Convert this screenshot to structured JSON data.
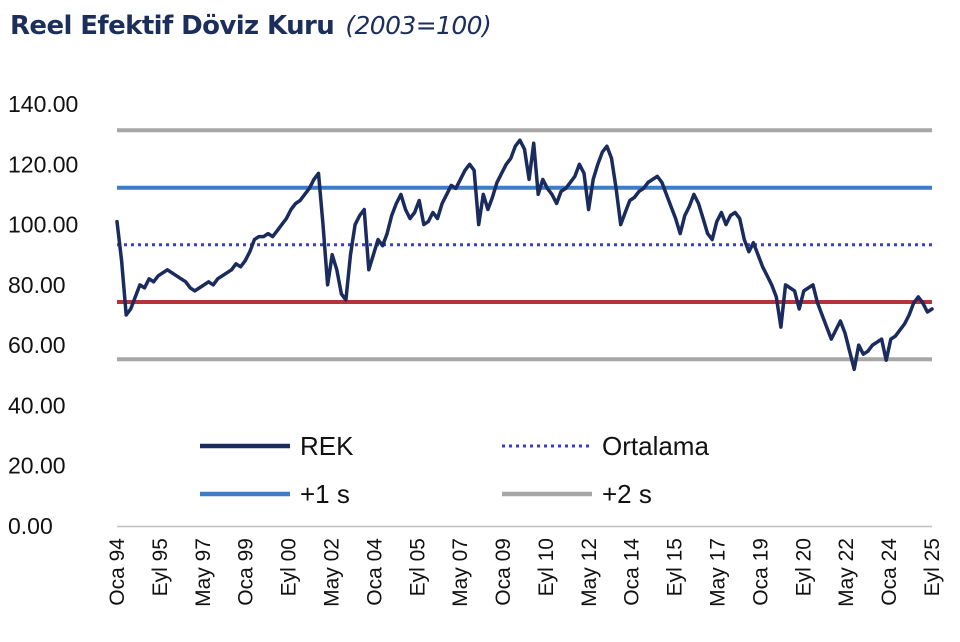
{
  "title": "Reel Efektif Döviz Kuru",
  "subtitle": "(2003=100)",
  "colors": {
    "rek": "#1a2b5e",
    "mean": "#3a3ccf",
    "sd1": "#3d7cc9",
    "sd2": "#a6a6a6",
    "lower1": "#b53339",
    "text": "#111111"
  },
  "chart_data": {
    "type": "line",
    "title": "Reel Efektif Döviz Kuru (2003=100)",
    "ylim": [
      0,
      140
    ],
    "yticks": [
      "0.00",
      "20.00",
      "40.00",
      "60.00",
      "80.00",
      "100.00",
      "120.00",
      "140.00"
    ],
    "xticks": [
      "Oca 94",
      "Eyl 95",
      "May 97",
      "Oca 99",
      "Eyl 00",
      "May 02",
      "Oca 04",
      "Eyl 05",
      "May 07",
      "Oca 09",
      "Eyl 10",
      "May 12",
      "Oca 14",
      "Eyl 15",
      "May 17",
      "Oca 19",
      "Eyl 20",
      "May 22",
      "Oca 24",
      "Eyl 25"
    ],
    "grid": false,
    "legend_placement": "bottom-left inside plot",
    "series": [
      {
        "name": "REK",
        "style": "solid",
        "values": [
          101,
          88,
          70,
          72,
          76,
          80,
          79,
          82,
          81,
          83,
          84,
          85,
          84,
          83,
          82,
          81,
          79,
          78,
          79,
          80,
          81,
          80,
          82,
          83,
          84,
          85,
          87,
          86,
          88,
          91,
          95,
          96,
          96,
          97,
          96,
          98,
          100,
          102,
          105,
          107,
          108,
          110,
          112,
          115,
          117,
          100,
          80,
          90,
          85,
          77,
          75,
          90,
          100,
          103,
          105,
          85,
          90,
          95,
          93,
          97,
          103,
          107,
          110,
          105,
          102,
          104,
          108,
          100,
          101,
          104,
          102,
          107,
          110,
          113,
          112,
          115,
          118,
          120,
          118,
          100,
          110,
          105,
          109,
          114,
          117,
          120,
          122,
          126,
          128,
          125,
          115,
          127,
          110,
          115,
          112,
          110,
          107,
          111,
          112,
          114,
          116,
          120,
          117,
          105,
          115,
          120,
          124,
          126,
          122,
          112,
          100,
          104,
          108,
          109,
          111,
          112,
          114,
          115,
          116,
          114,
          110,
          106,
          102,
          97,
          103,
          106,
          110,
          107,
          102,
          97,
          95,
          101,
          104,
          100,
          103,
          104,
          102,
          95,
          91,
          94,
          90,
          86,
          83,
          80,
          76,
          66,
          80,
          79,
          78,
          72,
          78,
          79,
          80,
          74,
          70,
          66,
          62,
          65,
          68,
          64,
          58,
          52,
          60,
          57,
          58,
          60,
          61,
          62,
          55,
          62,
          63,
          65,
          67,
          70,
          74,
          76,
          74,
          71,
          72
        ]
      },
      {
        "name": "Ortalama",
        "style": "dotted",
        "level": 93.3
      },
      {
        "name": "+1 s",
        "style": "solid",
        "level": 112.2
      },
      {
        "name": "+2 s",
        "style": "solid",
        "level": 131.3
      },
      {
        "style": "solid",
        "level": 74.3
      },
      {
        "style": "solid",
        "level": 55.3
      }
    ]
  },
  "legend": [
    {
      "label": "REK",
      "style": "solid",
      "color": "#1a2b5e"
    },
    {
      "label": "Ortalama",
      "style": "dotted",
      "color": "#3a3ccf"
    },
    {
      "label": "+1 s",
      "style": "solid",
      "color": "#3d7cc9"
    },
    {
      "label": "+2 s",
      "style": "solid",
      "color": "#a6a6a6"
    }
  ]
}
